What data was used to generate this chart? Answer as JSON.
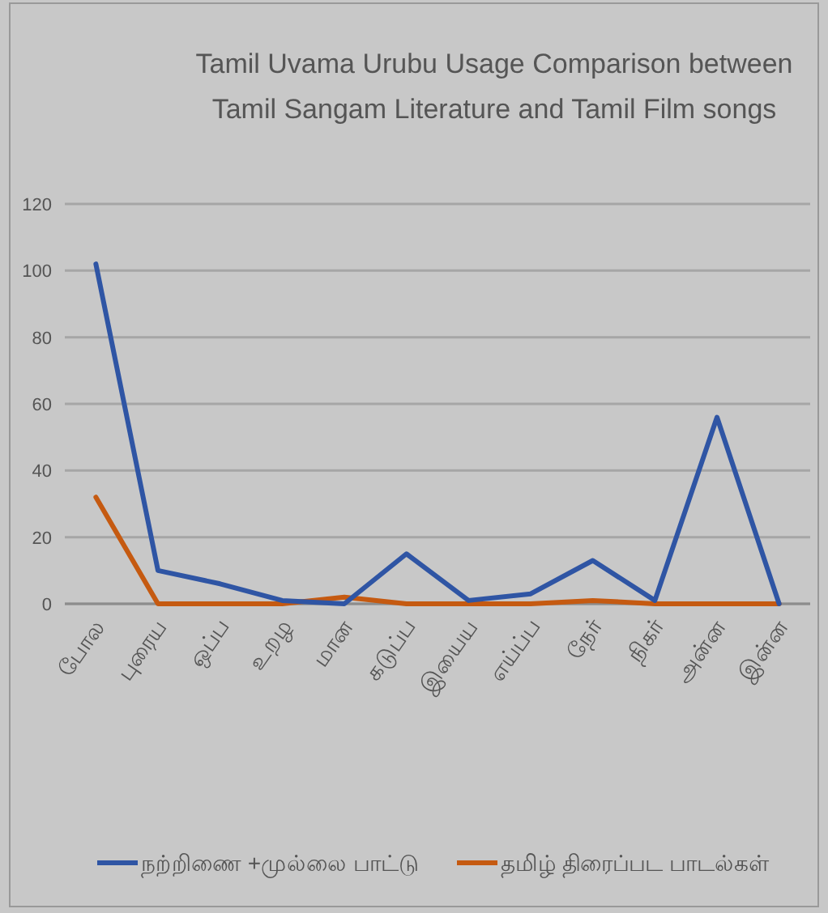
{
  "chart_data": {
    "type": "line",
    "title": "Tamil Uvama Urubu Usage Comparison between Tamil Sangam Literature and Tamil Film songs",
    "categories": [
      "போல",
      "புரைய",
      "ஒப்ப",
      "உறழ",
      "மான",
      "கடுப்ப",
      "இயைய",
      "எய்ப்ப",
      "நேர்",
      "நிகர்",
      "அன்ன",
      "இன்ன"
    ],
    "series": [
      {
        "name": "நற்றிணை +முல்லை பாட்டு",
        "color": "#2f55a4",
        "values": [
          102,
          10,
          6,
          1,
          0,
          15,
          1,
          3,
          13,
          1,
          56,
          0
        ]
      },
      {
        "name": "தமிழ் திரைப்பட பாடல்கள்",
        "color": "#c55a11",
        "values": [
          32,
          0,
          0,
          0,
          2,
          0,
          0,
          0,
          1,
          0,
          0,
          0
        ]
      }
    ],
    "ylim": [
      0,
      120
    ],
    "yticks": [
      0,
      20,
      40,
      60,
      80,
      100,
      120
    ],
    "grid": "y",
    "legend": "bottom"
  }
}
